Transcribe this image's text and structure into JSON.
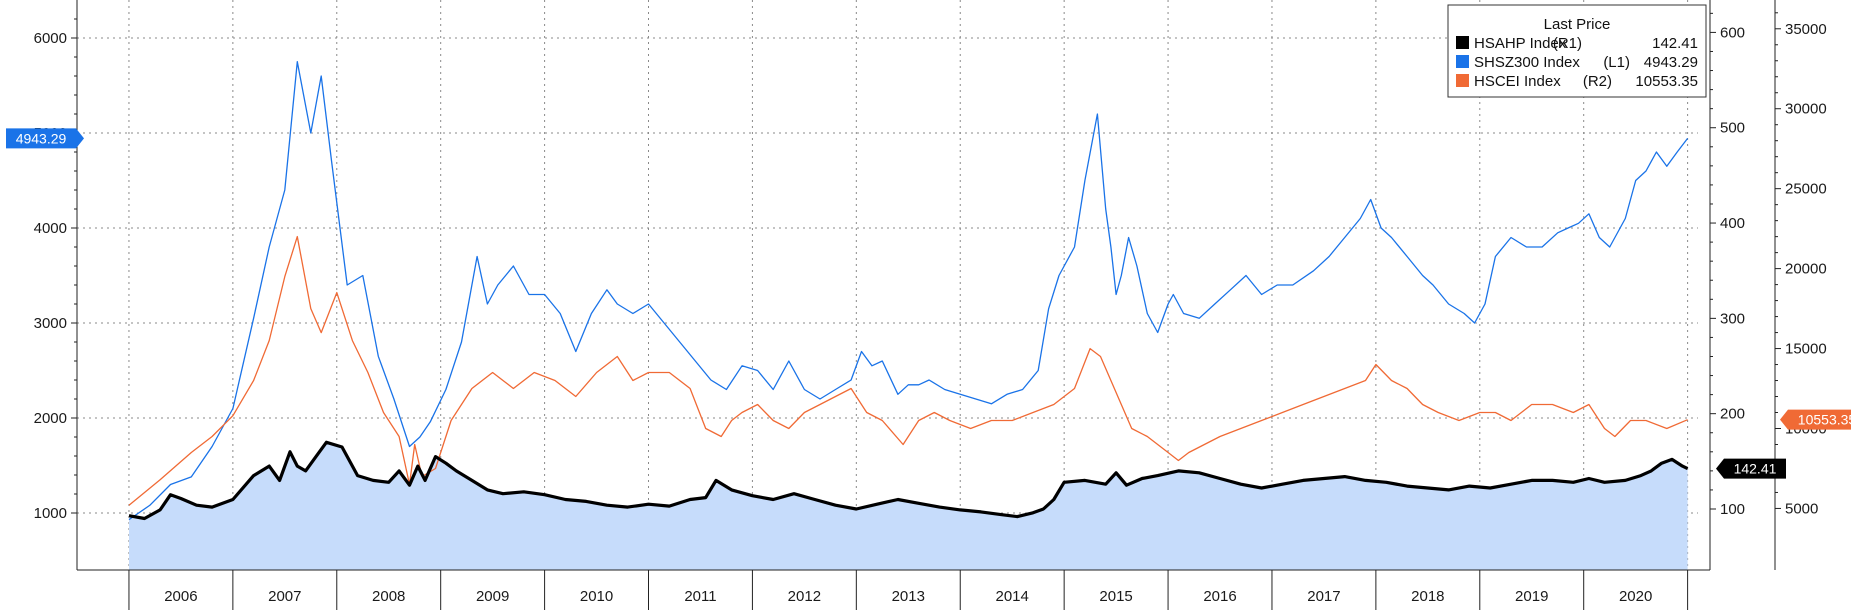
{
  "chart_data": {
    "type": "line",
    "title": "",
    "x_labels": [
      "2006",
      "2007",
      "2008",
      "2009",
      "2010",
      "2011",
      "2012",
      "2013",
      "2014",
      "2015",
      "2016",
      "2017",
      "2018",
      "2019",
      "2020"
    ],
    "x_range": [
      2005.5,
      2021.1
    ],
    "legend": {
      "title": "Last Price",
      "entries": [
        {
          "name": "HSAHP Index",
          "axis": "(R1)",
          "last": "142.41",
          "color": "#000000"
        },
        {
          "name": "SHSZ300 Index",
          "axis": "(L1)",
          "last": "4943.29",
          "color": "#1a73e8"
        },
        {
          "name": "HSCEI Index",
          "axis": "(R2)",
          "last": "10553.35",
          "color": "#f06a35"
        }
      ]
    },
    "axes": {
      "left": {
        "series": "SHSZ300 Index",
        "ticks": [
          "1000",
          "2000",
          "3000",
          "4000",
          "5000",
          "6000"
        ],
        "tick_values": [
          1000,
          2000,
          3000,
          4000,
          5000,
          6000
        ],
        "range": [
          400,
          6400
        ]
      },
      "right1": {
        "series": "HSAHP Index",
        "ticks": [
          "100",
          "200",
          "300",
          "400",
          "500",
          "600"
        ],
        "tick_values": [
          100,
          200,
          300,
          400,
          500,
          600
        ],
        "range": [
          36,
          634
        ]
      },
      "right2": {
        "series": "HSCEI Index",
        "ticks": [
          "5000",
          "10000",
          "15000",
          "20000",
          "25000",
          "30000",
          "35000"
        ],
        "tick_values": [
          5000,
          10000,
          15000,
          20000,
          25000,
          30000,
          35000
        ],
        "range": [
          1150,
          36800
        ]
      }
    },
    "badges": {
      "shsz300": "4943.29",
      "hscei": "10553.35",
      "hsahp": "142.41"
    },
    "series": [
      {
        "name": "SHSZ300 Index",
        "axis": "left",
        "color": "#1a73e8",
        "x": [
          2006.0,
          2006.2,
          2006.4,
          2006.6,
          2006.8,
          2007.0,
          2007.2,
          2007.35,
          2007.5,
          2007.62,
          2007.75,
          2007.85,
          2007.95,
          2008.1,
          2008.25,
          2008.4,
          2008.55,
          2008.7,
          2008.8,
          2008.9,
          2009.05,
          2009.2,
          2009.35,
          2009.45,
          2009.55,
          2009.7,
          2009.85,
          2010.0,
          2010.15,
          2010.3,
          2010.45,
          2010.6,
          2010.7,
          2010.85,
          2011.0,
          2011.15,
          2011.3,
          2011.45,
          2011.6,
          2011.75,
          2011.9,
          2012.05,
          2012.2,
          2012.35,
          2012.5,
          2012.65,
          2012.8,
          2012.95,
          2013.05,
          2013.15,
          2013.25,
          2013.4,
          2013.5,
          2013.6,
          2013.7,
          2013.85,
          2014.0,
          2014.15,
          2014.3,
          2014.45,
          2014.6,
          2014.75,
          2014.85,
          2014.95,
          2015.1,
          2015.2,
          2015.32,
          2015.4,
          2015.45,
          2015.5,
          2015.55,
          2015.62,
          2015.7,
          2015.8,
          2015.9,
          2016.0,
          2016.05,
          2016.15,
          2016.3,
          2016.45,
          2016.6,
          2016.75,
          2016.9,
          2017.05,
          2017.2,
          2017.4,
          2017.55,
          2017.7,
          2017.85,
          2017.95,
          2018.05,
          2018.15,
          2018.3,
          2018.45,
          2018.55,
          2018.7,
          2018.85,
          2018.95,
          2019.05,
          2019.15,
          2019.3,
          2019.45,
          2019.6,
          2019.75,
          2019.85,
          2019.95,
          2020.05,
          2020.15,
          2020.25,
          2020.4,
          2020.5,
          2020.6,
          2020.7,
          2020.8,
          2020.9,
          2021.0
        ],
        "values": [
          930,
          1080,
          1300,
          1380,
          1700,
          2100,
          3050,
          3800,
          4400,
          5750,
          5000,
          5600,
          4700,
          3400,
          3500,
          2650,
          2200,
          1700,
          1800,
          1960,
          2300,
          2800,
          3700,
          3200,
          3400,
          3600,
          3300,
          3300,
          3100,
          2700,
          3100,
          3350,
          3200,
          3100,
          3200,
          3000,
          2800,
          2600,
          2400,
          2300,
          2550,
          2500,
          2300,
          2600,
          2300,
          2200,
          2300,
          2400,
          2700,
          2550,
          2600,
          2250,
          2350,
          2350,
          2400,
          2300,
          2250,
          2200,
          2150,
          2250,
          2300,
          2500,
          3150,
          3500,
          3800,
          4500,
          5200,
          4200,
          3800,
          3300,
          3500,
          3900,
          3600,
          3100,
          2900,
          3200,
          3300,
          3100,
          3050,
          3200,
          3350,
          3500,
          3300,
          3400,
          3400,
          3550,
          3700,
          3900,
          4100,
          4300,
          4000,
          3900,
          3700,
          3500,
          3400,
          3200,
          3100,
          3000,
          3200,
          3700,
          3900,
          3800,
          3800,
          3950,
          4000,
          4050,
          4150,
          3900,
          3800,
          4100,
          4500,
          4600,
          4800,
          4650,
          4800,
          4943
        ]
      },
      {
        "name": "HSCEI Index",
        "axis": "right2",
        "color": "#f06a35",
        "x": [
          2006.0,
          2006.3,
          2006.6,
          2006.8,
          2007.0,
          2007.2,
          2007.35,
          2007.5,
          2007.62,
          2007.75,
          2007.85,
          2008.0,
          2008.15,
          2008.3,
          2008.45,
          2008.6,
          2008.7,
          2008.75,
          2008.82,
          2008.95,
          2009.1,
          2009.3,
          2009.5,
          2009.7,
          2009.9,
          2010.1,
          2010.3,
          2010.5,
          2010.7,
          2010.85,
          2011.0,
          2011.2,
          2011.4,
          2011.55,
          2011.7,
          2011.8,
          2011.9,
          2012.05,
          2012.2,
          2012.35,
          2012.5,
          2012.65,
          2012.8,
          2012.95,
          2013.1,
          2013.25,
          2013.45,
          2013.6,
          2013.75,
          2013.9,
          2014.1,
          2014.3,
          2014.5,
          2014.7,
          2014.9,
          2015.1,
          2015.25,
          2015.35,
          2015.45,
          2015.55,
          2015.65,
          2015.8,
          2016.0,
          2016.1,
          2016.2,
          2016.35,
          2016.5,
          2016.7,
          2016.9,
          2017.1,
          2017.3,
          2017.5,
          2017.7,
          2017.9,
          2018.0,
          2018.15,
          2018.3,
          2018.45,
          2018.6,
          2018.8,
          2019.0,
          2019.15,
          2019.3,
          2019.5,
          2019.7,
          2019.9,
          2020.05,
          2020.2,
          2020.3,
          2020.45,
          2020.6,
          2020.8,
          2021.0
        ],
        "values": [
          5200,
          6800,
          8500,
          9500,
          10800,
          13000,
          15500,
          19500,
          22000,
          17500,
          16000,
          18500,
          15500,
          13500,
          11000,
          9500,
          6500,
          9000,
          7000,
          7500,
          10500,
          12500,
          13500,
          12500,
          13500,
          13000,
          12000,
          13500,
          14500,
          13000,
          13500,
          13500,
          12500,
          10000,
          9500,
          10500,
          11000,
          11500,
          10500,
          10000,
          11000,
          11500,
          12000,
          12500,
          11000,
          10500,
          9000,
          10500,
          11000,
          10500,
          10000,
          10500,
          10500,
          11000,
          11500,
          12500,
          15000,
          14500,
          13000,
          11500,
          10000,
          9500,
          8500,
          8000,
          8500,
          9000,
          9500,
          10000,
          10500,
          11000,
          11500,
          12000,
          12500,
          13000,
          14000,
          13000,
          12500,
          11500,
          11000,
          10500,
          11000,
          11000,
          10500,
          11500,
          11500,
          11000,
          11500,
          10000,
          9500,
          10500,
          10500,
          10000,
          10553
        ]
      },
      {
        "name": "HSAHP Index",
        "axis": "right1",
        "color": "#000000",
        "x": [
          2006.0,
          2006.15,
          2006.3,
          2006.4,
          2006.5,
          2006.65,
          2006.8,
          2007.0,
          2007.2,
          2007.35,
          2007.45,
          2007.55,
          2007.62,
          2007.7,
          2007.8,
          2007.9,
          2008.05,
          2008.2,
          2008.35,
          2008.5,
          2008.6,
          2008.7,
          2008.78,
          2008.85,
          2008.95,
          2009.05,
          2009.15,
          2009.3,
          2009.45,
          2009.6,
          2009.8,
          2010.0,
          2010.2,
          2010.4,
          2010.6,
          2010.8,
          2011.0,
          2011.2,
          2011.4,
          2011.55,
          2011.65,
          2011.8,
          2012.0,
          2012.2,
          2012.4,
          2012.6,
          2012.8,
          2013.0,
          2013.2,
          2013.4,
          2013.6,
          2013.8,
          2014.0,
          2014.2,
          2014.4,
          2014.55,
          2014.7,
          2014.8,
          2014.9,
          2015.0,
          2015.2,
          2015.4,
          2015.5,
          2015.6,
          2015.75,
          2015.9,
          2016.1,
          2016.3,
          2016.5,
          2016.7,
          2016.9,
          2017.1,
          2017.3,
          2017.5,
          2017.7,
          2017.9,
          2018.1,
          2018.3,
          2018.5,
          2018.7,
          2018.9,
          2019.1,
          2019.3,
          2019.5,
          2019.7,
          2019.9,
          2020.05,
          2020.2,
          2020.4,
          2020.55,
          2020.65,
          2020.75,
          2020.85,
          2020.95,
          2021.0
        ],
        "values": [
          93,
          90,
          99,
          115,
          111,
          104,
          102,
          110,
          135,
          145,
          130,
          160,
          145,
          140,
          155,
          170,
          165,
          135,
          130,
          128,
          140,
          125,
          145,
          130,
          155,
          148,
          140,
          130,
          120,
          116,
          118,
          115,
          110,
          108,
          104,
          102,
          105,
          103,
          110,
          112,
          130,
          120,
          114,
          110,
          116,
          110,
          104,
          100,
          105,
          110,
          106,
          102,
          99,
          97,
          94,
          92,
          96,
          100,
          110,
          128,
          130,
          126,
          138,
          125,
          132,
          135,
          140,
          138,
          132,
          126,
          122,
          126,
          130,
          132,
          134,
          130,
          128,
          124,
          122,
          120,
          124,
          122,
          126,
          130,
          130,
          128,
          132,
          128,
          130,
          135,
          140,
          148,
          152,
          145,
          142.41
        ]
      }
    ]
  }
}
